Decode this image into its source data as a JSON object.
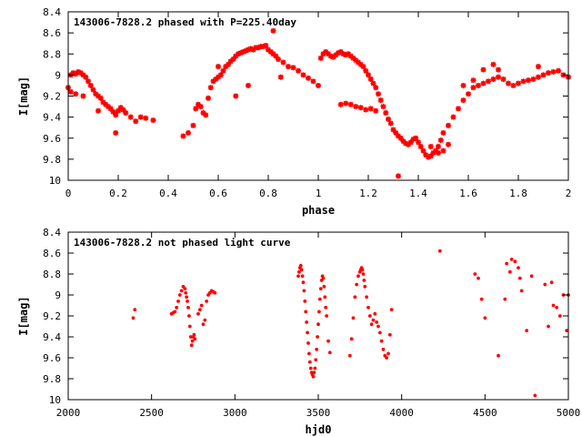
{
  "chart_data": [
    {
      "type": "scatter",
      "title": "143006-7828.2 phased with P=225.40day",
      "xlabel": "phase",
      "ylabel": "I[mag]",
      "xlim": [
        0,
        2
      ],
      "ylim": [
        10,
        8.4
      ],
      "y_inverted": true,
      "xticks": [
        "0",
        "0.2",
        "0.4",
        "0.6",
        "0.8",
        "1",
        "1.2",
        "1.4",
        "1.6",
        "1.8",
        "2"
      ],
      "yticks": [
        "8.4",
        "8.6",
        "8.8",
        "9",
        "9.2",
        "9.4",
        "9.6",
        "9.8",
        "10"
      ],
      "marker": "asterisk",
      "color": "#ff0000",
      "grid": false,
      "series": [
        {
          "x": [
            0.0,
            0.01,
            0.02,
            0.03,
            0.04,
            0.05,
            0.06,
            0.07,
            0.08,
            0.09,
            0.1,
            0.11,
            0.12,
            0.13,
            0.14,
            0.15,
            0.16,
            0.17,
            0.18,
            0.19,
            0.2,
            0.21,
            0.22,
            0.23,
            0.25,
            0.27,
            0.29,
            0.31,
            0.34,
            0.01,
            0.03,
            0.06,
            0.12,
            0.19,
            0.46,
            0.48,
            0.5,
            0.51,
            0.52,
            0.53,
            0.54,
            0.55,
            0.56,
            0.57,
            0.58,
            0.59,
            0.6,
            0.61,
            0.62,
            0.63,
            0.64,
            0.65,
            0.66,
            0.67,
            0.68,
            0.69,
            0.7,
            0.71,
            0.72,
            0.73,
            0.74,
            0.75,
            0.76,
            0.77,
            0.78,
            0.79,
            0.8,
            0.81,
            0.82,
            0.83,
            0.84,
            0.86,
            0.88,
            0.9,
            0.92,
            0.94,
            0.96,
            0.98,
            1.0,
            1.01,
            1.02,
            1.03,
            1.04,
            1.05,
            1.06,
            1.07,
            1.08,
            1.09,
            1.1,
            1.11,
            1.12,
            1.13,
            1.14,
            1.15,
            1.16,
            1.17,
            1.18,
            1.19,
            1.2,
            1.21,
            1.22,
            1.23,
            1.24,
            1.25,
            1.26,
            1.27,
            1.28,
            1.29,
            1.3,
            1.31,
            1.32,
            1.33,
            1.34,
            1.35,
            1.36,
            1.37,
            1.38,
            1.39,
            1.4,
            1.41,
            1.42,
            1.43,
            1.44,
            1.45,
            1.46,
            1.47,
            1.48,
            1.49,
            1.5,
            1.52,
            1.54,
            1.56,
            1.58,
            1.6,
            1.62,
            1.64,
            1.66,
            1.68,
            1.7,
            1.72,
            1.74,
            1.76,
            1.78,
            1.8,
            1.82,
            1.84,
            1.86,
            1.88,
            1.9,
            1.92,
            1.94,
            1.96,
            1.98,
            2.0,
            1.09,
            1.11,
            1.13,
            1.15,
            1.17,
            1.19,
            1.21,
            1.23,
            1.45,
            1.48,
            1.5,
            1.52,
            1.72,
            1.88,
            1.32,
            1.58,
            1.62,
            1.66,
            1.7,
            0.67,
            0.72,
            0.82,
            0.85,
            0.6
          ],
          "y": [
            9.12,
            9.0,
            8.98,
            8.99,
            8.97,
            8.98,
            9.0,
            9.02,
            9.06,
            9.1,
            9.14,
            9.18,
            9.2,
            9.22,
            9.26,
            9.28,
            9.3,
            9.32,
            9.35,
            9.38,
            9.34,
            9.31,
            9.33,
            9.36,
            9.4,
            9.44,
            9.4,
            9.41,
            9.43,
            9.16,
            9.18,
            9.2,
            9.34,
            9.55,
            9.58,
            9.55,
            9.48,
            9.32,
            9.28,
            9.3,
            9.36,
            9.38,
            9.22,
            9.12,
            9.06,
            9.04,
            9.02,
            9.0,
            8.96,
            8.92,
            8.9,
            8.87,
            8.85,
            8.82,
            8.8,
            8.79,
            8.78,
            8.77,
            8.76,
            8.75,
            8.76,
            8.74,
            8.74,
            8.73,
            8.73,
            8.72,
            8.76,
            8.78,
            8.8,
            8.82,
            8.85,
            8.88,
            8.92,
            8.93,
            8.96,
            9.0,
            9.03,
            9.06,
            9.1,
            8.84,
            8.8,
            8.78,
            8.8,
            8.82,
            8.83,
            8.81,
            8.79,
            8.78,
            8.8,
            8.81,
            8.8,
            8.82,
            8.84,
            8.86,
            8.88,
            8.9,
            8.92,
            8.96,
            9.0,
            9.04,
            9.08,
            9.12,
            9.18,
            9.24,
            9.3,
            9.36,
            9.42,
            9.46,
            9.52,
            9.55,
            9.58,
            9.6,
            9.63,
            9.65,
            9.66,
            9.64,
            9.61,
            9.6,
            9.64,
            9.68,
            9.72,
            9.76,
            9.78,
            9.77,
            9.74,
            9.72,
            9.68,
            9.62,
            9.55,
            9.48,
            9.4,
            9.32,
            9.24,
            9.18,
            9.12,
            9.1,
            9.08,
            9.06,
            9.04,
            9.02,
            9.04,
            9.08,
            9.1,
            9.08,
            9.06,
            9.05,
            9.04,
            9.02,
            9.0,
            8.98,
            8.97,
            8.96,
            9.0,
            9.02,
            9.28,
            9.27,
            9.28,
            9.3,
            9.31,
            9.33,
            9.32,
            9.34,
            9.68,
            9.74,
            9.72,
            9.66,
            8.95,
            8.92,
            9.96,
            9.1,
            9.05,
            8.95,
            8.9,
            9.2,
            9.1,
            8.58,
            9.02,
            8.92
          ]
        }
      ]
    },
    {
      "type": "scatter",
      "title": "143006-7828.2 not phased light curve",
      "xlabel": "hjd0",
      "ylabel": "I[mag]",
      "xlim": [
        2000,
        5000
      ],
      "ylim": [
        10,
        8.4
      ],
      "y_inverted": true,
      "xticks": [
        "2000",
        "2500",
        "3000",
        "3500",
        "4000",
        "4500",
        "5000"
      ],
      "yticks": [
        "8.4",
        "8.6",
        "8.8",
        "9",
        "9.2",
        "9.4",
        "9.6",
        "9.8",
        "10"
      ],
      "marker": "dot",
      "color": "#ff0000",
      "grid": false,
      "series": [
        {
          "x": [
            2390,
            2400,
            2620,
            2630,
            2640,
            2650,
            2660,
            2670,
            2680,
            2690,
            2700,
            2705,
            2710,
            2715,
            2720,
            2725,
            2730,
            2735,
            2740,
            2745,
            2750,
            2755,
            2760,
            2780,
            2790,
            2800,
            2810,
            2820,
            2830,
            2840,
            2850,
            2860,
            2870,
            2880,
            3380,
            3385,
            3390,
            3395,
            3400,
            3405,
            3410,
            3415,
            3420,
            3425,
            3430,
            3435,
            3440,
            3445,
            3450,
            3455,
            3460,
            3465,
            3470,
            3475,
            3480,
            3485,
            3490,
            3495,
            3500,
            3505,
            3510,
            3515,
            3520,
            3525,
            3530,
            3535,
            3540,
            3545,
            3550,
            3560,
            3570,
            3690,
            3700,
            3710,
            3720,
            3730,
            3740,
            3750,
            3755,
            3760,
            3765,
            3770,
            3775,
            3780,
            3790,
            3800,
            3810,
            3820,
            3830,
            3840,
            3850,
            3860,
            3870,
            3880,
            3890,
            3900,
            3910,
            3920,
            3930,
            3940,
            4230,
            4440,
            4460,
            4480,
            4500,
            4580,
            4620,
            4630,
            4650,
            4660,
            4680,
            4700,
            4710,
            4720,
            4750,
            4780,
            4860,
            4880,
            4900,
            4910,
            4930,
            4950,
            4970,
            4990,
            5000
          ],
          "y": [
            9.22,
            9.14,
            9.18,
            9.17,
            9.16,
            9.12,
            9.06,
            9.0,
            8.96,
            8.92,
            8.94,
            8.98,
            9.02,
            9.06,
            9.12,
            9.2,
            9.3,
            9.4,
            9.48,
            9.44,
            9.4,
            9.38,
            9.42,
            9.18,
            9.14,
            9.1,
            9.28,
            9.24,
            9.06,
            9.0,
            8.98,
            8.96,
            8.97,
            8.98,
            8.82,
            8.78,
            8.74,
            8.72,
            8.76,
            8.82,
            8.88,
            8.96,
            9.06,
            9.16,
            9.26,
            9.36,
            9.46,
            9.56,
            9.64,
            9.7,
            9.74,
            9.76,
            9.78,
            9.74,
            9.7,
            9.62,
            9.52,
            9.4,
            9.28,
            9.16,
            9.04,
            8.94,
            8.86,
            8.82,
            8.84,
            8.92,
            9.02,
            9.12,
            9.2,
            9.44,
            9.55,
            9.58,
            9.42,
            9.22,
            9.02,
            8.9,
            8.82,
            8.78,
            8.76,
            8.74,
            8.76,
            8.8,
            8.86,
            8.92,
            9.02,
            9.12,
            9.2,
            9.28,
            9.24,
            9.18,
            9.26,
            9.3,
            9.36,
            9.44,
            9.52,
            9.58,
            9.6,
            9.56,
            9.38,
            9.14,
            8.58,
            8.8,
            8.84,
            9.04,
            9.22,
            9.58,
            9.04,
            8.7,
            8.78,
            8.66,
            8.68,
            8.74,
            8.84,
            8.96,
            9.34,
            8.82,
            8.9,
            9.3,
            8.88,
            9.1,
            9.12,
            9.2,
            9.0,
            9.34,
            9.0
          ],
          "extra_points": [
            [
              4800,
              9.96
            ]
          ]
        }
      ]
    }
  ]
}
